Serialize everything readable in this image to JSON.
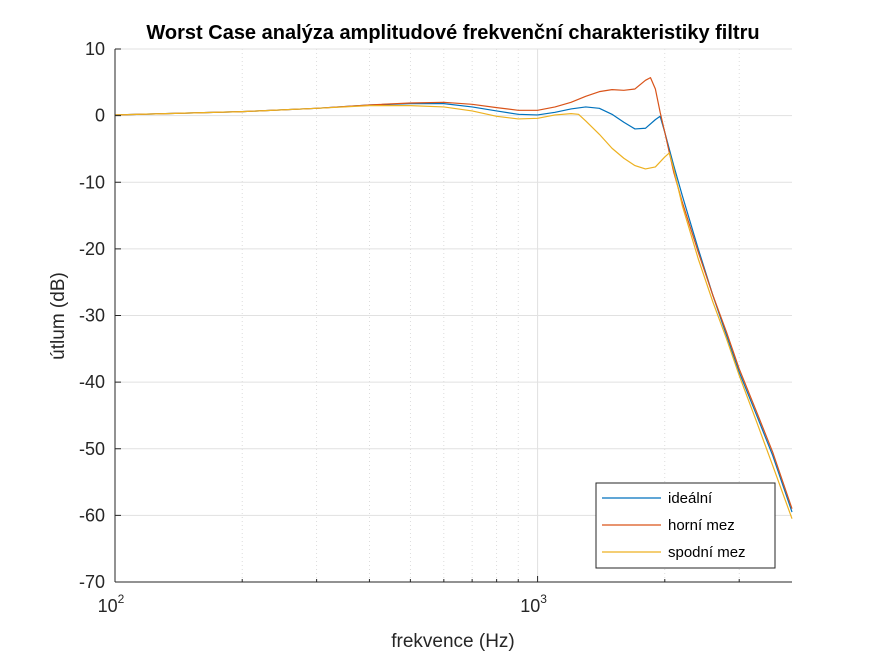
{
  "chart_data": {
    "type": "line",
    "title": "Worst Case analýza amplitudové frekvenční charakteristiky filtru",
    "xlabel": "frekvence (Hz)",
    "ylabel": "útlum (dB)",
    "xscale": "log",
    "xlim": [
      100,
      4000
    ],
    "ylim": [
      -70,
      10
    ],
    "yticks": [
      10,
      0,
      -10,
      -20,
      -30,
      -40,
      -50,
      -60,
      -70
    ],
    "xticks": [
      {
        "value": 100,
        "base": "10",
        "exp": "2"
      },
      {
        "value": 1000,
        "base": "10",
        "exp": "3"
      }
    ],
    "grid": true,
    "legend_position": "bottom-right",
    "series": [
      {
        "name": "ideální",
        "color": "#0072BD",
        "points": [
          [
            100,
            0.1
          ],
          [
            200,
            0.6
          ],
          [
            300,
            1.1
          ],
          [
            400,
            1.6
          ],
          [
            500,
            1.8
          ],
          [
            600,
            1.8
          ],
          [
            700,
            1.3
          ],
          [
            800,
            0.7
          ],
          [
            900,
            0.2
          ],
          [
            1000,
            0.1
          ],
          [
            1100,
            0.5
          ],
          [
            1200,
            1.0
          ],
          [
            1300,
            1.3
          ],
          [
            1400,
            1.1
          ],
          [
            1500,
            0.2
          ],
          [
            1600,
            -1.0
          ],
          [
            1700,
            -2.0
          ],
          [
            1800,
            -1.9
          ],
          [
            1900,
            -0.6
          ],
          [
            1950,
            -0.1
          ],
          [
            2000,
            -2.5
          ],
          [
            2100,
            -7.5
          ],
          [
            2200,
            -12
          ],
          [
            2400,
            -20
          ],
          [
            2600,
            -27
          ],
          [
            2800,
            -33
          ],
          [
            3000,
            -38.5
          ],
          [
            3300,
            -45
          ],
          [
            3600,
            -51
          ],
          [
            4000,
            -59.5
          ]
        ]
      },
      {
        "name": "horní mez",
        "color": "#D95319",
        "points": [
          [
            100,
            0.1
          ],
          [
            200,
            0.6
          ],
          [
            300,
            1.1
          ],
          [
            400,
            1.6
          ],
          [
            500,
            1.9
          ],
          [
            600,
            2.0
          ],
          [
            700,
            1.7
          ],
          [
            800,
            1.2
          ],
          [
            900,
            0.8
          ],
          [
            1000,
            0.8
          ],
          [
            1100,
            1.3
          ],
          [
            1200,
            2.0
          ],
          [
            1300,
            2.9
          ],
          [
            1400,
            3.6
          ],
          [
            1500,
            3.9
          ],
          [
            1600,
            3.8
          ],
          [
            1700,
            4.0
          ],
          [
            1800,
            5.3
          ],
          [
            1850,
            5.7
          ],
          [
            1900,
            4.0
          ],
          [
            1950,
            0.5
          ],
          [
            2000,
            -2.5
          ],
          [
            2100,
            -8.5
          ],
          [
            2200,
            -13
          ],
          [
            2400,
            -20.5
          ],
          [
            2600,
            -27
          ],
          [
            2800,
            -32.5
          ],
          [
            3000,
            -38
          ],
          [
            3300,
            -44.5
          ],
          [
            3600,
            -50.5
          ],
          [
            4000,
            -59
          ]
        ]
      },
      {
        "name": "spodní mez",
        "color": "#EDB120",
        "points": [
          [
            100,
            0.1
          ],
          [
            200,
            0.6
          ],
          [
            300,
            1.1
          ],
          [
            400,
            1.5
          ],
          [
            500,
            1.5
          ],
          [
            600,
            1.3
          ],
          [
            700,
            0.7
          ],
          [
            800,
            -0.1
          ],
          [
            900,
            -0.5
          ],
          [
            1000,
            -0.4
          ],
          [
            1100,
            0.1
          ],
          [
            1200,
            0.3
          ],
          [
            1250,
            0.2
          ],
          [
            1300,
            -0.8
          ],
          [
            1400,
            -2.8
          ],
          [
            1500,
            -4.9
          ],
          [
            1600,
            -6.4
          ],
          [
            1700,
            -7.5
          ],
          [
            1800,
            -8.0
          ],
          [
            1900,
            -7.7
          ],
          [
            2000,
            -6.2
          ],
          [
            2050,
            -5.6
          ],
          [
            2100,
            -8.0
          ],
          [
            2200,
            -13.5
          ],
          [
            2400,
            -21.5
          ],
          [
            2600,
            -28
          ],
          [
            2800,
            -33.5
          ],
          [
            3000,
            -39
          ],
          [
            3300,
            -46
          ],
          [
            3600,
            -52.5
          ],
          [
            4000,
            -60.5
          ]
        ]
      }
    ]
  }
}
